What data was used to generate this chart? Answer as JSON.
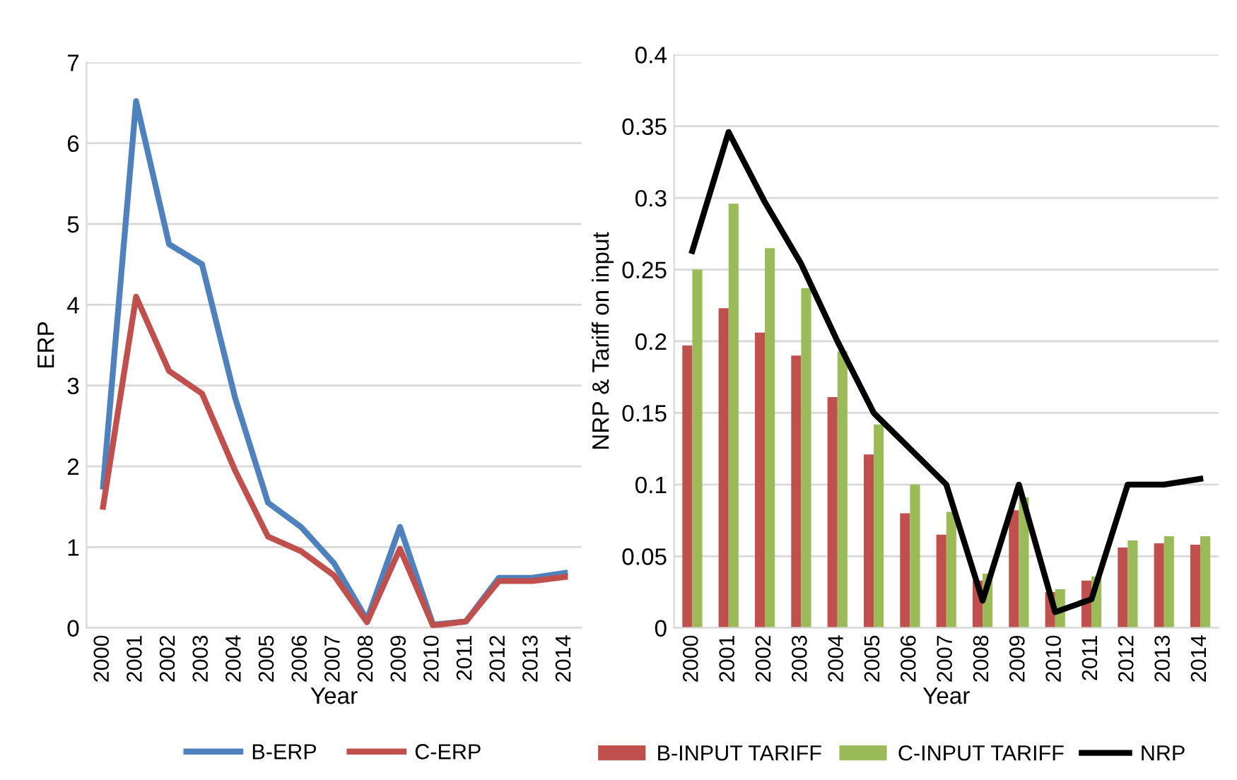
{
  "chart_data": [
    {
      "type": "line",
      "xlabel": "Year",
      "ylabel": "ERP",
      "categories": [
        "2000",
        "2001",
        "2002",
        "2003",
        "2004",
        "2005",
        "2006",
        "2007",
        "2008",
        "2009",
        "2010",
        "2011",
        "2012",
        "2013",
        "2014"
      ],
      "ylim": [
        0,
        7
      ],
      "yticks": [
        0,
        1,
        2,
        3,
        4,
        5,
        6,
        7
      ],
      "grid": "y",
      "legend": "bottom",
      "series": [
        {
          "name": "B-ERP",
          "color": "#4f81bd",
          "values": [
            1.75,
            6.52,
            4.75,
            4.5,
            2.85,
            1.55,
            1.25,
            0.8,
            0.1,
            1.25,
            0.04,
            0.08,
            0.62,
            0.62,
            0.68
          ]
        },
        {
          "name": "C-ERP",
          "color": "#c0504d",
          "values": [
            1.5,
            4.1,
            3.18,
            2.9,
            1.95,
            1.13,
            0.95,
            0.65,
            0.07,
            0.98,
            0.03,
            0.08,
            0.58,
            0.58,
            0.63
          ]
        }
      ]
    },
    {
      "type": "bar",
      "xlabel": "Year",
      "ylabel": "NRP & Tariff on input",
      "categories": [
        "2000",
        "2001",
        "2002",
        "2003",
        "2004",
        "2005",
        "2006",
        "2007",
        "2008",
        "2009",
        "2010",
        "2011",
        "2012",
        "2013",
        "2014"
      ],
      "ylim": [
        0,
        0.4
      ],
      "yticks": [
        0,
        0.05,
        0.1,
        0.15,
        0.2,
        0.25,
        0.3,
        0.35,
        0.4
      ],
      "grid": "y",
      "legend": "bottom",
      "series": [
        {
          "name": "B-INPUT TARIFF",
          "color": "#c0504d",
          "values": [
            0.197,
            0.223,
            0.206,
            0.19,
            0.161,
            0.121,
            0.08,
            0.065,
            0.033,
            0.082,
            0.025,
            0.033,
            0.056,
            0.059,
            0.058
          ]
        },
        {
          "name": "C-INPUT TARIFF",
          "color": "#9bbb59",
          "values": [
            0.25,
            0.296,
            0.265,
            0.237,
            0.193,
            0.142,
            0.1,
            0.081,
            0.038,
            0.091,
            0.027,
            0.036,
            0.061,
            0.064,
            0.064
          ]
        },
        {
          "name": "NRP",
          "type": "line",
          "color": "#000000",
          "values": [
            0.263,
            0.346,
            0.297,
            0.254,
            0.2,
            0.15,
            0.125,
            0.1,
            0.019,
            0.1,
            0.011,
            0.02,
            0.1,
            0.1,
            0.104
          ]
        }
      ]
    }
  ]
}
